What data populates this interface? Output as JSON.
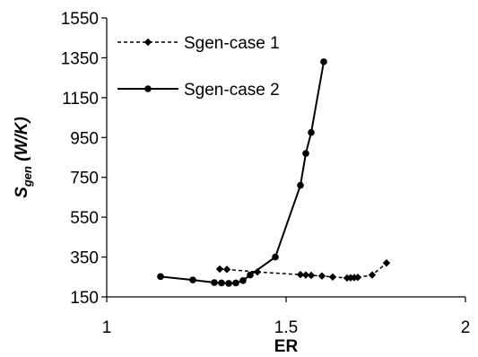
{
  "chart_data": {
    "type": "line",
    "xlabel": "ER",
    "ylabel": {
      "base": "S",
      "subscript": "gen",
      "unit": " (W/K)"
    },
    "xlim": [
      1,
      2
    ],
    "ylim": [
      150,
      1550
    ],
    "xticks": [
      "1",
      "1.5",
      "2"
    ],
    "yticks": [
      "150",
      "350",
      "550",
      "750",
      "950",
      "1150",
      "1350",
      "1550"
    ],
    "grid": false,
    "legend_position": "top-left",
    "series": [
      {
        "name": "Sgen-case 1",
        "style": "dashed",
        "marker": "diamond",
        "color": "#000000",
        "x": [
          1.315,
          1.335,
          1.42,
          1.54,
          1.555,
          1.57,
          1.6,
          1.63,
          1.67,
          1.68,
          1.69,
          1.7,
          1.74,
          1.78
        ],
        "y": [
          290,
          288,
          275,
          262,
          260,
          258,
          255,
          250,
          245,
          246,
          247,
          248,
          260,
          320
        ]
      },
      {
        "name": "Sgen-case 2",
        "style": "solid",
        "marker": "circle",
        "color": "#000000",
        "x": [
          1.15,
          1.24,
          1.3,
          1.32,
          1.34,
          1.36,
          1.38,
          1.4,
          1.47,
          1.54,
          1.555,
          1.57,
          1.605
        ],
        "y": [
          252,
          235,
          222,
          220,
          218,
          220,
          232,
          260,
          350,
          710,
          870,
          975,
          1330
        ]
      }
    ]
  }
}
